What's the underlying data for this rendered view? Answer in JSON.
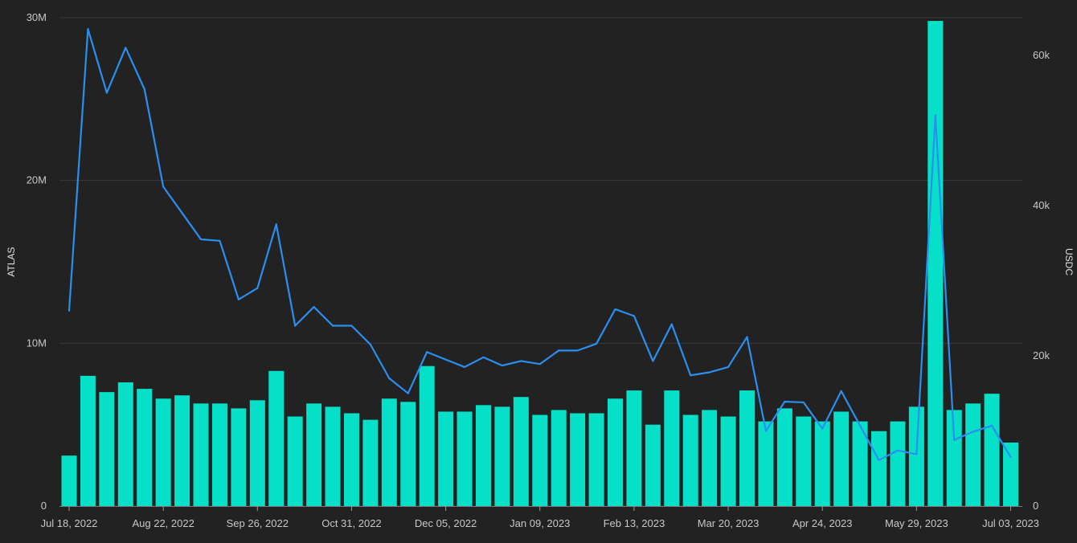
{
  "chart_data": {
    "type": "bar+line",
    "title": "",
    "ylabel_left": "ATLAS",
    "ylabel_right": "USDC",
    "y_left_ticks": [
      {
        "value": 0,
        "label": "0"
      },
      {
        "value": 10000000,
        "label": "10M"
      },
      {
        "value": 20000000,
        "label": "20M"
      },
      {
        "value": 30000000,
        "label": "30M"
      }
    ],
    "y_right_ticks": [
      {
        "value": 0,
        "label": "0"
      },
      {
        "value": 20000,
        "label": "20k"
      },
      {
        "value": 40000,
        "label": "40k"
      },
      {
        "value": 60000,
        "label": "60k"
      }
    ],
    "y_left_range": [
      0,
      30000000
    ],
    "y_right_range": [
      0,
      65000
    ],
    "x_labels": [
      {
        "index": 0,
        "label": "Jul 18, 2022"
      },
      {
        "index": 5,
        "label": "Aug 22, 2022"
      },
      {
        "index": 10,
        "label": "Sep 26, 2022"
      },
      {
        "index": 15,
        "label": "Oct 31, 2022"
      },
      {
        "index": 20,
        "label": "Dec 05, 2022"
      },
      {
        "index": 25,
        "label": "Jan 09, 2023"
      },
      {
        "index": 30,
        "label": "Feb 13, 2023"
      },
      {
        "index": 35,
        "label": "Mar 20, 2023"
      },
      {
        "index": 40,
        "label": "Apr 24, 2023"
      },
      {
        "index": 45,
        "label": "May 29, 2023"
      },
      {
        "index": 50,
        "label": "Jul 03, 2023"
      }
    ],
    "series": [
      {
        "name": "ATLAS",
        "type": "bar",
        "axis": "left",
        "color": "#06E0C8",
        "values": [
          3100000,
          8000000,
          7000000,
          7600000,
          7200000,
          6600000,
          6800000,
          6300000,
          6300000,
          6000000,
          6500000,
          8300000,
          5500000,
          6300000,
          6100000,
          5700000,
          5300000,
          6600000,
          6400000,
          8600000,
          5800000,
          5800000,
          6200000,
          6100000,
          6700000,
          5600000,
          5900000,
          5700000,
          5700000,
          6600000,
          7100000,
          5000000,
          7100000,
          5600000,
          5900000,
          5500000,
          7100000,
          5200000,
          6000000,
          5500000,
          5200000,
          5800000,
          5200000,
          4600000,
          5200000,
          6100000,
          29800000,
          5900000,
          6300000,
          6900000,
          3900000
        ]
      },
      {
        "name": "USDC",
        "type": "line",
        "axis": "right",
        "color": "#2B8FF0",
        "values": [
          26000,
          63500,
          55000,
          61000,
          55500,
          42500,
          39000,
          35500,
          35300,
          27500,
          29000,
          37500,
          24000,
          26500,
          24000,
          24000,
          21500,
          17000,
          15000,
          20500,
          19500,
          18500,
          19800,
          18700,
          19300,
          18900,
          20700,
          20700,
          21600,
          26200,
          25300,
          19300,
          24200,
          17400,
          17800,
          18500,
          22500,
          10000,
          13900,
          13800,
          10300,
          15300,
          10700,
          6100,
          7400,
          6900,
          52000,
          8800,
          9900,
          10700,
          6500
        ]
      }
    ],
    "grid": true,
    "legend": "none"
  }
}
